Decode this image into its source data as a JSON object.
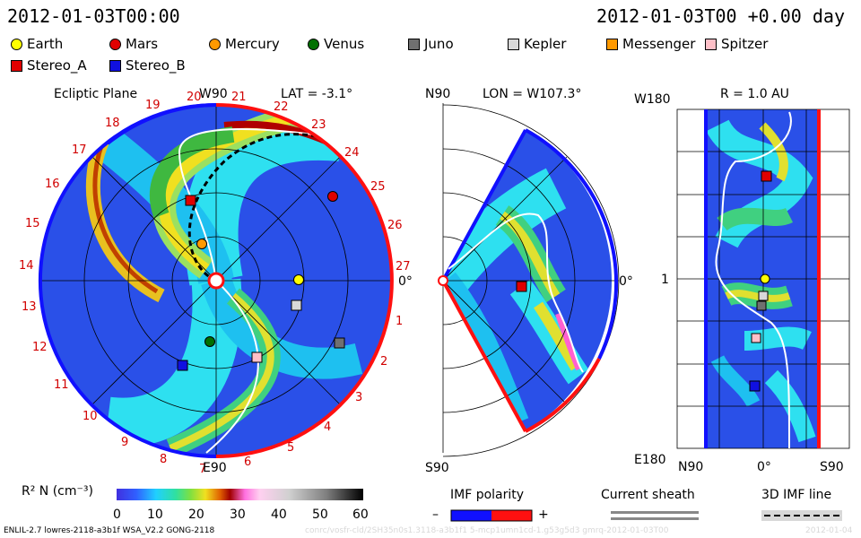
{
  "header": {
    "left_timestamp": "2012-01-03T00:00",
    "right_timestamp": "2012-01-03T00 +0.00 day"
  },
  "legend": [
    {
      "label": "Earth",
      "color": "#ffff00",
      "shape": "circle"
    },
    {
      "label": "Mars",
      "color": "#e00000",
      "shape": "circle"
    },
    {
      "label": "Mercury",
      "color": "#ff9900",
      "shape": "circle"
    },
    {
      "label": "Venus",
      "color": "#007000",
      "shape": "circle"
    },
    {
      "label": "Juno",
      "color": "#707070",
      "shape": "square"
    },
    {
      "label": "Kepler",
      "color": "#d8d8d8",
      "shape": "square"
    },
    {
      "label": "Messenger",
      "color": "#ff9900",
      "shape": "square"
    },
    {
      "label": "Spitzer",
      "color": "#ffc0c8",
      "shape": "square"
    },
    {
      "label": "Stereo_A",
      "color": "#e00000",
      "shape": "square"
    },
    {
      "label": "Stereo_B",
      "color": "#1010e0",
      "shape": "square"
    }
  ],
  "ecliptic": {
    "title": "Ecliptic Plane",
    "lat": "LAT = -3.1°",
    "top_label": "W90",
    "bottom_label": "E90",
    "right_label": "0°",
    "sectors": [
      "20",
      "21",
      "22",
      "23",
      "24",
      "25",
      "26",
      "27",
      "1",
      "2",
      "3",
      "4",
      "5",
      "6",
      "7",
      "8",
      "9",
      "10",
      "11",
      "12",
      "13",
      "14",
      "15",
      "16",
      "17",
      "18",
      "19"
    ]
  },
  "meridional": {
    "lon": "LON = W107.3°",
    "top_label": "N90",
    "bottom_label": "S90",
    "right_label": "0°"
  },
  "radial": {
    "title": "R = 1.0 AU",
    "top_label": "W180",
    "bottom_label": "E180",
    "mid_label": "1",
    "xlabels": [
      "N90",
      "0°",
      "S90"
    ]
  },
  "colorbar": {
    "label": "R² N (cm⁻³)",
    "ticks": [
      "0",
      "10",
      "20",
      "30",
      "40",
      "50",
      "60"
    ]
  },
  "imf": {
    "title": "IMF polarity",
    "minus": "–",
    "plus": "+",
    "neg_color": "#1010ff",
    "pos_color": "#ff1010"
  },
  "sheath": {
    "title": "Current sheath"
  },
  "imf3d": {
    "title": "3D IMF line"
  },
  "footer": {
    "model": "ENLIL-2.7 lowres-2118-a3b1f WSA_V2.2 GONG-2118",
    "path": "conrc/vosfr-cld/2SH35n0s1.3118-a3b1f1 5-mcp1umn1cd-1.g53g5d3 gmrq-2012-01-03T00",
    "date": "2012-01-04"
  }
}
